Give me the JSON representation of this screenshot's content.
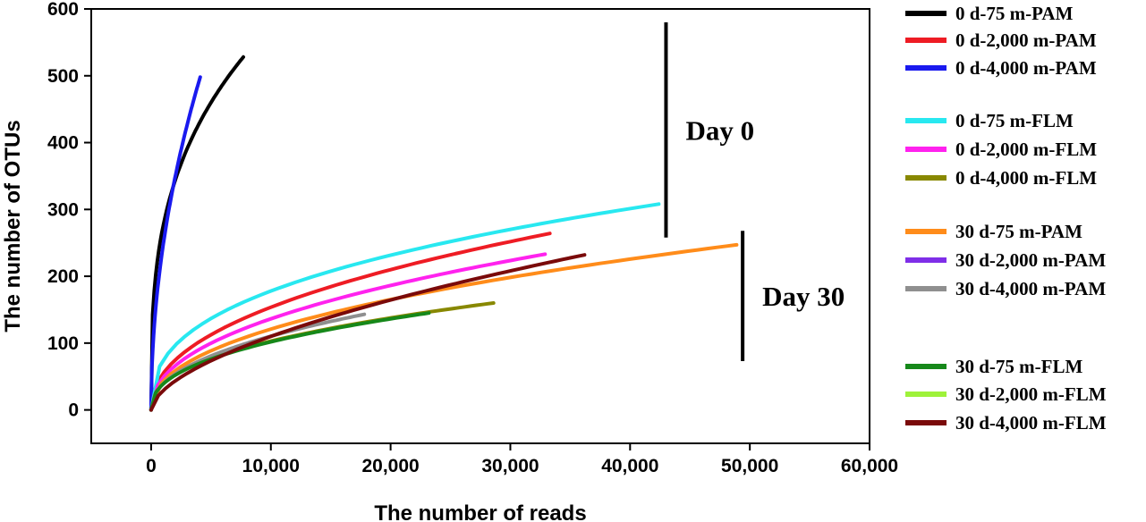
{
  "chart_data": {
    "type": "line",
    "title": "",
    "xlabel": "The number of reads",
    "ylabel": "The number of OTUs",
    "xlim": [
      -5000,
      60000
    ],
    "ylim": [
      -50,
      600
    ],
    "xticks": [
      0,
      10000,
      20000,
      30000,
      40000,
      50000,
      60000
    ],
    "xtick_labels": [
      "0",
      "10,000",
      "20,000",
      "30,000",
      "40,000",
      "50,000",
      "60,000"
    ],
    "yticks": [
      0,
      100,
      200,
      300,
      400,
      500,
      600
    ],
    "ytick_labels": [
      "0",
      "100",
      "200",
      "300",
      "400",
      "500",
      "600"
    ],
    "grid": false,
    "legend_position": "right",
    "series": [
      {
        "name": "0 d-75 m-PAM",
        "color": "#000000",
        "max_reads": 7700,
        "max_otus": 528,
        "shape": 0.32
      },
      {
        "name": "0 d-2,000 m-PAM",
        "color": "#ee1c24",
        "max_reads": 33300,
        "max_otus": 264,
        "shape": 0.45
      },
      {
        "name": "0 d-4,000 m-PAM",
        "color": "#1a1aef",
        "max_reads": 4100,
        "max_otus": 498,
        "shape": 0.5
      },
      {
        "name": "0 d-75 m-FLM",
        "color": "#28e8f0",
        "max_reads": 42400,
        "max_otus": 308,
        "shape": 0.38
      },
      {
        "name": "0 d-2,000 m-FLM",
        "color": "#ff22ee",
        "max_reads": 32900,
        "max_otus": 233,
        "shape": 0.45
      },
      {
        "name": "0 d-4,000 m-FLM",
        "color": "#888800",
        "max_reads": 28600,
        "max_otus": 160,
        "shape": 0.42
      },
      {
        "name": "30 d-75 m-PAM",
        "color": "#ff8c1a",
        "max_reads": 48900,
        "max_otus": 247,
        "shape": 0.45
      },
      {
        "name": "30 d-2,000 m-PAM",
        "color": "#7f2ee8",
        "max_reads": 0,
        "max_otus": 0,
        "shape": 0.45
      },
      {
        "name": "30 d-4,000 m-PAM",
        "color": "#8f8f8f",
        "max_reads": 17800,
        "max_otus": 143,
        "shape": 0.45
      },
      {
        "name": "30 d-75 m-FLM",
        "color": "#16881a",
        "max_reads": 23200,
        "max_otus": 145,
        "shape": 0.42
      },
      {
        "name": "30 d-2,000 m-FLM",
        "color": "#9ef23a",
        "max_reads": 0,
        "max_otus": 0,
        "shape": 0.45
      },
      {
        "name": "30 d-4,000 m-FLM",
        "color": "#7a0a0a",
        "max_reads": 36200,
        "max_otus": 232,
        "shape": 0.58
      }
    ],
    "annotations": [
      {
        "text": "Day 0",
        "x_reads": 43000,
        "y_top": 580,
        "y_bottom": 258
      },
      {
        "text": "Day 30",
        "x_reads": 49400,
        "y_top": 268,
        "y_bottom": 73
      }
    ]
  }
}
